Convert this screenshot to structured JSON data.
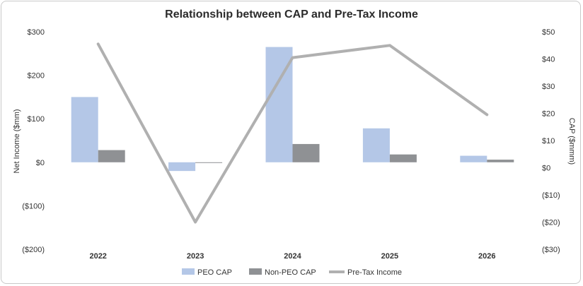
{
  "chart_data": {
    "type": "bar",
    "title": "Relationship between CAP and Pre-Tax Income",
    "categories": [
      "2022",
      "2023",
      "2024",
      "2025",
      "2026"
    ],
    "left_axis": {
      "label": "Net Income ($mm)",
      "ylim": [
        -200,
        300
      ],
      "ticks": [
        300,
        200,
        100,
        0,
        -100,
        -200
      ],
      "tick_labels": [
        "$300",
        "$200",
        "$100",
        "$0",
        "($100)",
        "($200)"
      ]
    },
    "right_axis": {
      "label": "CAP ($mmm)",
      "ylim": [
        -30,
        50
      ],
      "ticks": [
        50,
        40,
        30,
        20,
        10,
        0,
        -10,
        -20,
        -30
      ],
      "tick_labels": [
        "$50",
        "$40",
        "$30",
        "$20",
        "$10",
        "$0",
        "($10)",
        "($20)",
        "($30)"
      ]
    },
    "series": [
      {
        "name": "PEO CAP",
        "type": "bar",
        "axis": "left",
        "color": "#b4c7e7",
        "values": [
          150,
          -20,
          265,
          78,
          15
        ]
      },
      {
        "name": "Non-PEO CAP",
        "type": "bar",
        "axis": "left",
        "color": "#8f9194",
        "values": [
          28,
          -1,
          42,
          18,
          6
        ]
      },
      {
        "name": "Pre-Tax Income",
        "type": "line",
        "axis": "right",
        "color": "#b0b0b0",
        "values": [
          45.5,
          -20,
          40.5,
          45,
          19.5
        ]
      }
    ],
    "legend": {
      "placement": "bottom",
      "entries": [
        "PEO CAP",
        "Non-PEO CAP",
        "Pre-Tax Income"
      ]
    },
    "grid": false
  }
}
